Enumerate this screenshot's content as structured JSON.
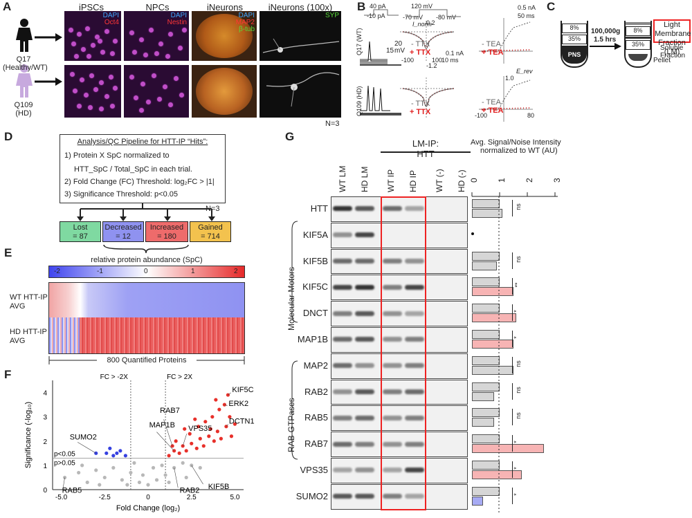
{
  "panels": [
    "A",
    "B",
    "C",
    "D",
    "E",
    "F",
    "G"
  ],
  "panelA": {
    "columns": [
      "iPSCs",
      "NPCs",
      "iNeurons",
      "iNeurons (100x)"
    ],
    "stains": {
      "ipsc": [
        "DAPI",
        "Oct4"
      ],
      "npc": [
        "DAPI",
        "Nestin"
      ],
      "ineuron": [
        "DAPI",
        "MAP2",
        "β-tub"
      ],
      "ineuron100x": [
        "SYP"
      ]
    },
    "rows": [
      {
        "line": "Q17",
        "desc": "(Healthy/WT)"
      },
      {
        "line": "Q109",
        "desc": "(HD)"
      }
    ],
    "n_label": "N=3"
  },
  "panelB": {
    "lines": [
      "Q17 (WT)",
      "Q109 (HD)"
    ],
    "step_current": [
      "40 pA",
      "-10 pA"
    ],
    "step_voltage": [
      "120 mV",
      "-70 mV",
      "-80 mV"
    ],
    "scale_ap": [
      "15",
      "20",
      "mV"
    ],
    "ttx": [
      "- TTX",
      "+ TTX"
    ],
    "tea": [
      "- TEA",
      "+ TEA"
    ],
    "scale_na": [
      "0.1 nA",
      "10 ms"
    ],
    "scale_k": [
      "0.5 nA",
      "50 ms"
    ],
    "axis": [
      "I_norm",
      "E_rev",
      "-100",
      "100",
      "80",
      "1.0",
      "-1.2",
      "0.2"
    ]
  },
  "panelC": {
    "speed": "100,000g",
    "time": "1.5 hrs",
    "layers": [
      "8%",
      "35%",
      "PNS"
    ],
    "labels": [
      "Light Membrane Fraction (LM)",
      "Soluble Fraction",
      "Pellet"
    ]
  },
  "panelD": {
    "title": "Analysis/QC Pipeline for HTT-IP “Hits”:",
    "steps": [
      "1) Protein X SpC normalized to",
      "HTT_SpC / Total_SpC in each trial.",
      "2) Fold Change (FC) Threshold: log₂FC > |1|",
      "3) Significance Threshold: p<0.05"
    ],
    "n_label": "N=3",
    "categories": [
      {
        "label": "Lost",
        "count": "= 87",
        "color": "#7fd9a1"
      },
      {
        "label": "Decreased",
        "count": "= 12",
        "color": "#8f92f0"
      },
      {
        "label": "Increased",
        "count": "= 180",
        "color": "#ee6b6b"
      },
      {
        "label": "Gained",
        "count": "= 714",
        "color": "#f3c24e"
      }
    ]
  },
  "panelE": {
    "title": "relative protein abundance (SpC)",
    "scale_ticks": [
      "-2",
      "-1",
      "0",
      "1",
      "2"
    ],
    "rows": [
      "WT HTT-IP AVG",
      "HD HTT-IP AVG"
    ],
    "footer": "800 Quantified Proteins"
  },
  "chart_data": {
    "type": "scatter",
    "title": "",
    "xlabel": "Fold Change (log₂)",
    "ylabel": "Significance (-log₁₀)",
    "xlim": [
      -5.5,
      5.5
    ],
    "ylim": [
      0,
      4.5
    ],
    "x_ticks": [
      "-5.0",
      "-2.5",
      "0",
      "2.5",
      "5.0"
    ],
    "y_ticks": [
      "0",
      "1",
      "2",
      "3",
      "4"
    ],
    "thresholds": {
      "fc_left": "FC > -2X",
      "fc_right": "FC > 2X",
      "p_upper": "p<0.05",
      "p_lower": "p>0.05"
    },
    "series": [
      {
        "name": "increased",
        "color": "#e8302a",
        "points": [
          [
            1.2,
            1.4
          ],
          [
            1.5,
            1.6
          ],
          [
            1.8,
            1.5
          ],
          [
            2.0,
            1.8
          ],
          [
            2.2,
            1.6
          ],
          [
            2.5,
            1.9
          ],
          [
            2.8,
            1.7
          ],
          [
            3.0,
            2.1
          ],
          [
            3.2,
            1.8
          ],
          [
            3.5,
            2.2
          ],
          [
            3.8,
            2.0
          ],
          [
            4.0,
            2.4
          ],
          [
            4.2,
            2.1
          ],
          [
            4.5,
            2.6
          ],
          [
            1.6,
            2.0
          ],
          [
            2.4,
            2.3
          ],
          [
            2.9,
            2.6
          ],
          [
            3.3,
            2.8
          ],
          [
            3.7,
            3.0
          ],
          [
            4.1,
            3.3
          ],
          [
            4.4,
            3.5
          ],
          [
            4.7,
            3.0
          ],
          [
            5.0,
            2.7
          ],
          [
            3.9,
            3.7
          ],
          [
            4.6,
            3.9
          ],
          [
            2.1,
            2.5
          ],
          [
            1.4,
            1.8
          ],
          [
            2.7,
            2.9
          ],
          [
            3.6,
            2.5
          ],
          [
            4.8,
            2.2
          ]
        ]
      },
      {
        "name": "decreased",
        "color": "#3540e0",
        "points": [
          [
            -3.0,
            1.5
          ],
          [
            -2.4,
            1.5
          ],
          [
            -2.0,
            1.4
          ],
          [
            -1.6,
            1.6
          ],
          [
            -1.3,
            1.4
          ],
          [
            -2.2,
            1.7
          ],
          [
            -1.8,
            1.5
          ]
        ]
      },
      {
        "name": "not significant",
        "color": "#b8b8b8",
        "points": [
          [
            -4.8,
            0.5
          ],
          [
            -4.0,
            0.7
          ],
          [
            -3.5,
            0.3
          ],
          [
            -3.0,
            0.8
          ],
          [
            -2.5,
            0.5
          ],
          [
            -2.0,
            0.9
          ],
          [
            -1.5,
            0.4
          ],
          [
            -1.0,
            0.7
          ],
          [
            -0.5,
            0.3
          ],
          [
            0,
            0.2
          ],
          [
            0.5,
            0.4
          ],
          [
            1.0,
            0.6
          ],
          [
            1.5,
            0.9
          ],
          [
            2.0,
            1.1
          ],
          [
            2.5,
            1.0
          ],
          [
            3.0,
            0.9
          ],
          [
            -0.8,
            1.1
          ],
          [
            0.8,
            1.0
          ],
          [
            1.2,
            0.3
          ],
          [
            -1.2,
            0.2
          ],
          [
            -2.8,
            0.2
          ],
          [
            -3.8,
            1.0
          ],
          [
            2.2,
            0.5
          ],
          [
            0.3,
            0.9
          ],
          [
            -0.3,
            0.6
          ]
        ]
      }
    ],
    "labels": [
      {
        "text": "SUMO2",
        "x": -3.0,
        "y": 1.5
      },
      {
        "text": "RAB5",
        "x": -4.8,
        "y": 0.5
      },
      {
        "text": "RAB7",
        "x": 1.4,
        "y": 1.8
      },
      {
        "text": "MAP1B",
        "x": 1.5,
        "y": 1.6
      },
      {
        "text": "VPS35",
        "x": 2.0,
        "y": 1.8
      },
      {
        "text": "KIF5C",
        "x": 4.6,
        "y": 3.9
      },
      {
        "text": "ERK2",
        "x": 4.4,
        "y": 3.5
      },
      {
        "text": "DCTN1",
        "x": 4.5,
        "y": 2.6
      },
      {
        "text": "KIF5B",
        "x": 2.5,
        "y": 1.0
      },
      {
        "text": "RAB2",
        "x": 1.5,
        "y": 0.9
      }
    ]
  },
  "panelG": {
    "ip_title": "LM-IP: HTT",
    "lanes": [
      "WT LM",
      "HD LM",
      "WT IP",
      "HD IP",
      "WT (-)",
      "HD (-)"
    ],
    "plot_title": [
      "Avg. Signal/Noise  Intensity",
      "normalized to WT (AU)"
    ],
    "x_ticks": [
      "0",
      "1",
      "2",
      "3"
    ],
    "groups": [
      "Molecular Motors",
      "RAB-GTPases"
    ],
    "rows": [
      {
        "name": "HTT",
        "wt": 1.0,
        "hd": 1.1,
        "sig": "ns"
      },
      {
        "name": "KIF5A",
        "wt": 0.0,
        "hd": 0.0,
        "sig": ""
      },
      {
        "name": "KIF5B",
        "wt": 1.0,
        "hd": 0.9,
        "sig": "ns"
      },
      {
        "name": "KIF5C",
        "wt": 1.0,
        "hd": 1.5,
        "sig": "**"
      },
      {
        "name": "DNCT",
        "wt": 1.0,
        "hd": 1.6,
        "sig": "*"
      },
      {
        "name": "MAP1B",
        "wt": 1.0,
        "hd": 1.5,
        "sig": "*"
      },
      {
        "name": "MAP2",
        "wt": 1.0,
        "hd": 1.5,
        "sig": "ns"
      },
      {
        "name": "RAB2",
        "wt": 1.0,
        "hd": 0.8,
        "sig": "ns"
      },
      {
        "name": "RAB5",
        "wt": 1.0,
        "hd": 0.8,
        "sig": "ns"
      },
      {
        "name": "RAB7",
        "wt": 1.0,
        "hd": 2.6,
        "sig": "*"
      },
      {
        "name": "VPS35",
        "wt": 1.0,
        "hd": 1.8,
        "sig": "*"
      },
      {
        "name": "SUMO2",
        "wt": 1.0,
        "hd": 0.4,
        "sig": "*"
      }
    ]
  }
}
